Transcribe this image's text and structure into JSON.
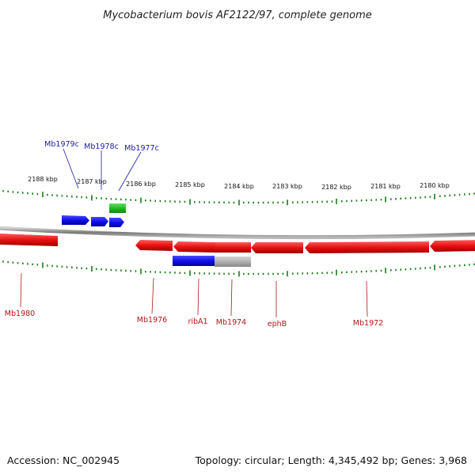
{
  "title": "Mycobacterium bovis AF2122/97, complete genome",
  "footer": {
    "accession": "Accession: NC_002945",
    "info": "Topology: circular; Length: 4,345,492 bp; Genes: 3,968"
  },
  "colors": {
    "forward_gene": "#1010e0",
    "reverse_gene": "#e01010",
    "rna_feature": "#22bb22",
    "pseudo_feature": "#b0b0b0",
    "forward_label": "#1a1aa0",
    "reverse_label": "#b01515",
    "tick": "#1a7a1a",
    "backbone": "#888888"
  },
  "ticks": [
    {
      "label": "2188 kbp"
    },
    {
      "label": "2187 kbp"
    },
    {
      "label": "2186 kbp"
    },
    {
      "label": "2185 kbp"
    },
    {
      "label": "2184 kbp"
    },
    {
      "label": "2183 kbp"
    },
    {
      "label": "2182 kbp"
    },
    {
      "label": "2181 kbp"
    },
    {
      "label": "2180 kbp"
    }
  ],
  "forward_genes": [
    {
      "label": "Mb1979c"
    },
    {
      "label": "Mb1978c"
    },
    {
      "label": "Mb1977c"
    }
  ],
  "reverse_genes": [
    {
      "label": "Mb1980"
    },
    {
      "label": "Mb1976"
    },
    {
      "label": "ribA1"
    },
    {
      "label": "Mb1974"
    },
    {
      "label": "ephB"
    },
    {
      "label": "Mb1972"
    }
  ]
}
